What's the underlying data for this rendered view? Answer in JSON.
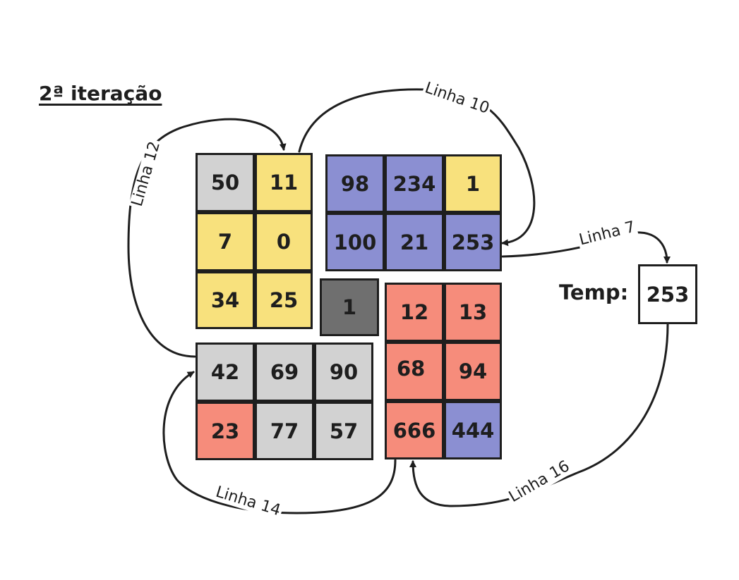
{
  "title": "2ª iteração",
  "temp": {
    "label": "Temp:",
    "value": "253"
  },
  "colors": {
    "gray": "#d2d2d2",
    "yellow": "#f8e17d",
    "blue": "#8b8fd2",
    "red": "#f68c7b",
    "dark": "#6f6f6f",
    "stroke": "#1e1e1e"
  },
  "cells": [
    {
      "id": "a1",
      "value": "50",
      "color": "gray"
    },
    {
      "id": "a2",
      "value": "11",
      "color": "yellow"
    },
    {
      "id": "a3",
      "value": "7",
      "color": "yellow"
    },
    {
      "id": "a4",
      "value": "0",
      "color": "yellow"
    },
    {
      "id": "a5",
      "value": "34",
      "color": "yellow"
    },
    {
      "id": "a6",
      "value": "25",
      "color": "yellow"
    },
    {
      "id": "b1",
      "value": "98",
      "color": "blue"
    },
    {
      "id": "b2",
      "value": "234",
      "color": "blue"
    },
    {
      "id": "b3",
      "value": "1",
      "color": "yellow"
    },
    {
      "id": "b4",
      "value": "100",
      "color": "blue"
    },
    {
      "id": "b5",
      "value": "21",
      "color": "blue"
    },
    {
      "id": "b6",
      "value": "253",
      "color": "blue"
    },
    {
      "id": "c1",
      "value": "1",
      "color": "dark"
    },
    {
      "id": "d1",
      "value": "12",
      "color": "red"
    },
    {
      "id": "d2",
      "value": "13",
      "color": "red"
    },
    {
      "id": "d3",
      "value": "68",
      "color": "red"
    },
    {
      "id": "d4",
      "value": "94",
      "color": "red"
    },
    {
      "id": "d5",
      "value": "666",
      "color": "red"
    },
    {
      "id": "d6",
      "value": "444",
      "color": "blue"
    },
    {
      "id": "e1",
      "value": "42",
      "color": "gray"
    },
    {
      "id": "e2",
      "value": "69",
      "color": "gray"
    },
    {
      "id": "e3",
      "value": "90",
      "color": "gray"
    },
    {
      "id": "e4",
      "value": "23",
      "color": "red"
    },
    {
      "id": "e5",
      "value": "77",
      "color": "gray"
    },
    {
      "id": "e6",
      "value": "57",
      "color": "gray"
    }
  ],
  "arrows": [
    {
      "id": "linha-10",
      "label": "Linha 10"
    },
    {
      "id": "linha-12",
      "label": "Linha 12"
    },
    {
      "id": "linha-7",
      "label": "Linha 7"
    },
    {
      "id": "linha-14",
      "label": "Linha 14"
    },
    {
      "id": "linha-16",
      "label": "Linha 16"
    }
  ]
}
